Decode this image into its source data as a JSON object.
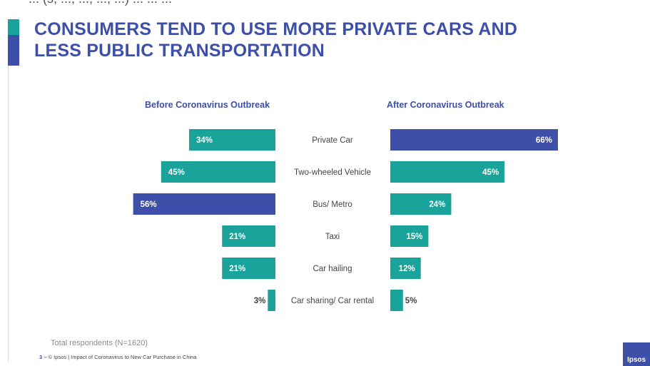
{
  "top_text": "... (s, ..., ..., ..., ...) ... ... ...",
  "title_line1": "CONSUMERS TEND TO USE MORE PRIVATE CARS AND",
  "title_line2": "LESS PUBLIC TRANSPORTATION",
  "colors": {
    "teal": "#1aa39a",
    "blue": "#3d4fa8"
  },
  "chart_data": {
    "type": "bar",
    "orientation": "horizontal-butterfly",
    "categories": [
      "Private Car",
      "Two-wheeled Vehicle",
      "Bus/ Metro",
      "Taxi",
      "Car hailing",
      "Car sharing/ Car rental"
    ],
    "series": [
      {
        "name": "Before Coronavirus Outbreak",
        "values": [
          34,
          45,
          56,
          21,
          21,
          3
        ],
        "labels": [
          "34%",
          "45%",
          "56%",
          "21%",
          "21%",
          "3%"
        ],
        "colors": [
          "#1aa39a",
          "#1aa39a",
          "#3d4fa8",
          "#1aa39a",
          "#1aa39a",
          "#1aa39a"
        ]
      },
      {
        "name": "After Coronavirus Outbreak",
        "values": [
          66,
          45,
          24,
          15,
          12,
          5
        ],
        "labels": [
          "66%",
          "45%",
          "24%",
          "15%",
          "12%",
          "5%"
        ],
        "colors": [
          "#3d4fa8",
          "#1aa39a",
          "#1aa39a",
          "#1aa39a",
          "#1aa39a",
          "#1aa39a"
        ]
      }
    ],
    "unit": "%",
    "xlim": [
      0,
      66
    ]
  },
  "footer_note": "Total respondents (N=1620)",
  "footer_page": "3 –",
  "footer_text": "© Ipsos | Impact of Coronavirus to New Car Purchase in China",
  "logo_text": "Ipsos"
}
